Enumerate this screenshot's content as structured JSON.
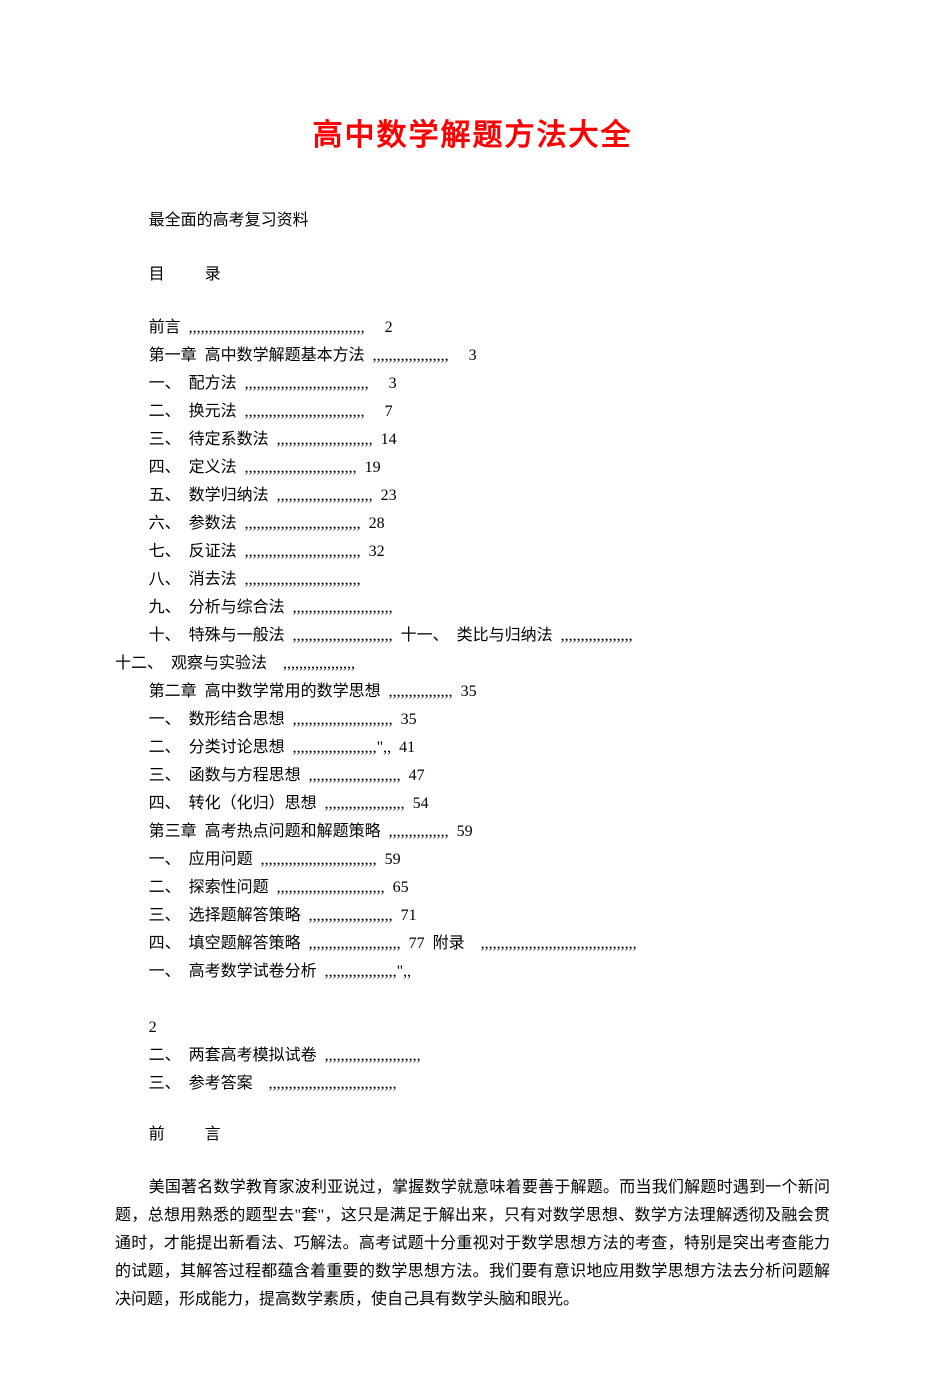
{
  "title": "高中数学解题方法大全",
  "subtitle": "最全面的高考复习资料",
  "toc_heading": "目          录",
  "toc": {
    "l0": "前言  ,,,,,,,,,,,,,,,,,,,,,,,,,,,,,,,,,,,,,,,,,,,,     2",
    "l1": "第一章  高中数学解题基本方法  ,,,,,,,,,,,,,,,,,,,     3",
    "l2": "一、  配方法  ,,,,,,,,,,,,,,,,,,,,,,,,,,,,,,,     3",
    "l3": "二、  换元法  ,,,,,,,,,,,,,,,,,,,,,,,,,,,,,,     7",
    "l4": "三、  待定系数法  ,,,,,,,,,,,,,,,,,,,,,,,,  14",
    "l5": "四、  定义法  ,,,,,,,,,,,,,,,,,,,,,,,,,,,,  19",
    "l6": "五、  数学归纳法  ,,,,,,,,,,,,,,,,,,,,,,,,  23",
    "l7": "六、  参数法  ,,,,,,,,,,,,,,,,,,,,,,,,,,,,,  28",
    "l8": "七、  反证法  ,,,,,,,,,,,,,,,,,,,,,,,,,,,,,  32",
    "l9": "八、  消去法  ,,,,,,,,,,,,,,,,,,,,,,,,,,,,,",
    "l10": "九、  分析与综合法  ,,,,,,,,,,,,,,,,,,,,,,,,,",
    "l11": "十、  特殊与一般法  ,,,,,,,,,,,,,,,,,,,,,,,,,  十一、  类比与归纳法  ,,,,,,,,,,,,,,,,,,",
    "l12": "十二、  观察与实验法    ,,,,,,,,,,,,,,,,,,",
    "l13": "第二章  高中数学常用的数学思想  ,,,,,,,,,,,,,,,,  35",
    "l14": "一、  数形结合思想  ,,,,,,,,,,,,,,,,,,,,,,,,,  35",
    "l15": "二、  分类讨论思想  ,,,,,,,,,,,,,,,,,,,,,\",,  41",
    "l16": "三、  函数与方程思想  ,,,,,,,,,,,,,,,,,,,,,,,  47",
    "l17": "四、  转化（化归）思想  ,,,,,,,,,,,,,,,,,,,,  54",
    "l18": "第三章  高考热点问题和解题策略  ,,,,,,,,,,,,,,,  59",
    "l19": "一、  应用问题  ,,,,,,,,,,,,,,,,,,,,,,,,,,,,,  59",
    "l20": "二、  探索性问题  ,,,,,,,,,,,,,,,,,,,,,,,,,,,  65",
    "l21": "三、  选择题解答策略  ,,,,,,,,,,,,,,,,,,,,,  71",
    "l22": "四、  填空题解答策略  ,,,,,,,,,,,,,,,,,,,,,,,  77  附录    ,,,,,,,,,,,,,,,,,,,,,,,,,,,,,,,,,,,,,,,",
    "l23": "一、  高考数学试卷分析  ,,,,,,,,,,,,,,,,,,\",,",
    "l24": "2",
    "l25": "二、  两套高考模拟试卷  ,,,,,,,,,,,,,,,,,,,,,,,,",
    "l26": "三、  参考答案    ,,,,,,,,,,,,,,,,,,,,,,,,,,,,,,,,"
  },
  "preface_heading": "前          言",
  "paragraph": "美国著名数学教育家波利亚说过，掌握数学就意味着要善于解题。而当我们解题时遇到一个新问题，总想用熟悉的题型去\"套\"，这只是满足于解出来，只有对数学思想、数学方法理解透彻及融会贯通时，才能提出新看法、巧解法。高考试题十分重视对于数学思想方法的考查，特别是突出考查能力的试题，其解答过程都蕴含着重要的数学思想方法。我们要有意识地应用数学思想方法去分析问题解决问题，形成能力，提高数学素质，使自己具有数学头脑和眼光。"
}
